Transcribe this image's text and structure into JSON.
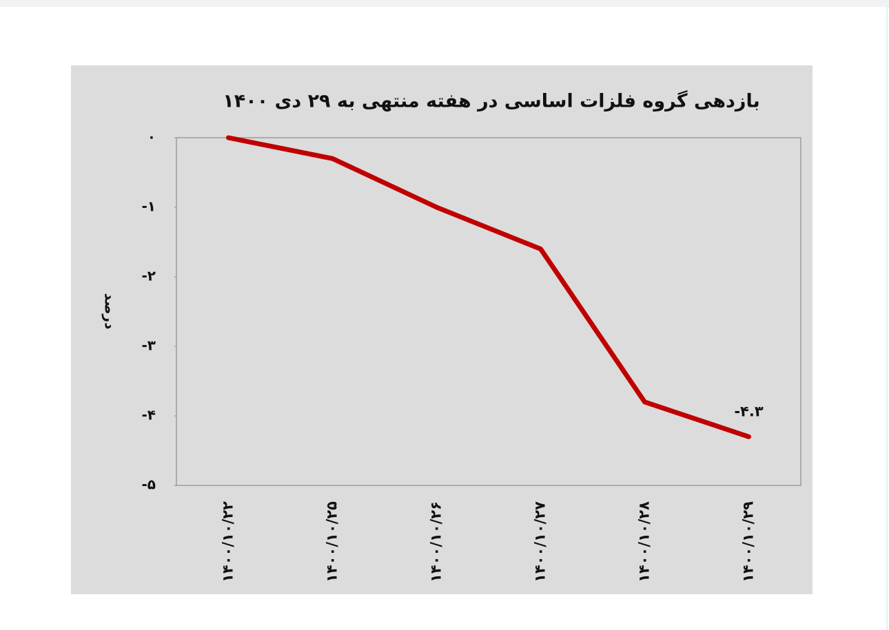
{
  "chart_data": {
    "type": "line",
    "title": "بازدهی گروه فلزات اساسی در هفته منتهی به ۲۹ دی ۱۴۰۰",
    "y_label": "درصد",
    "categories": [
      "۱۴۰۰/۱۰/۲۲",
      "۱۴۰۰/۱۰/۲۵",
      "۱۴۰۰/۱۰/۲۶",
      "۱۴۰۰/۱۰/۲۷",
      "۱۴۰۰/۱۰/۲۸",
      "۱۴۰۰/۱۰/۲۹"
    ],
    "values": [
      0,
      -0.3,
      -1.0,
      -1.6,
      -3.8,
      -4.3
    ],
    "value_labels": [
      null,
      null,
      null,
      null,
      null,
      "-۴.۳"
    ],
    "color": "#c00000",
    "ylim": [
      -5,
      0
    ],
    "yticks": [
      {
        "value": 0,
        "label": "۰"
      },
      {
        "value": -1,
        "label": "-۱"
      },
      {
        "value": -2,
        "label": "-۲"
      },
      {
        "value": -3,
        "label": "-۳"
      },
      {
        "value": -4,
        "label": "-۴"
      },
      {
        "value": -5,
        "label": "-۵"
      }
    ],
    "grid": false
  }
}
